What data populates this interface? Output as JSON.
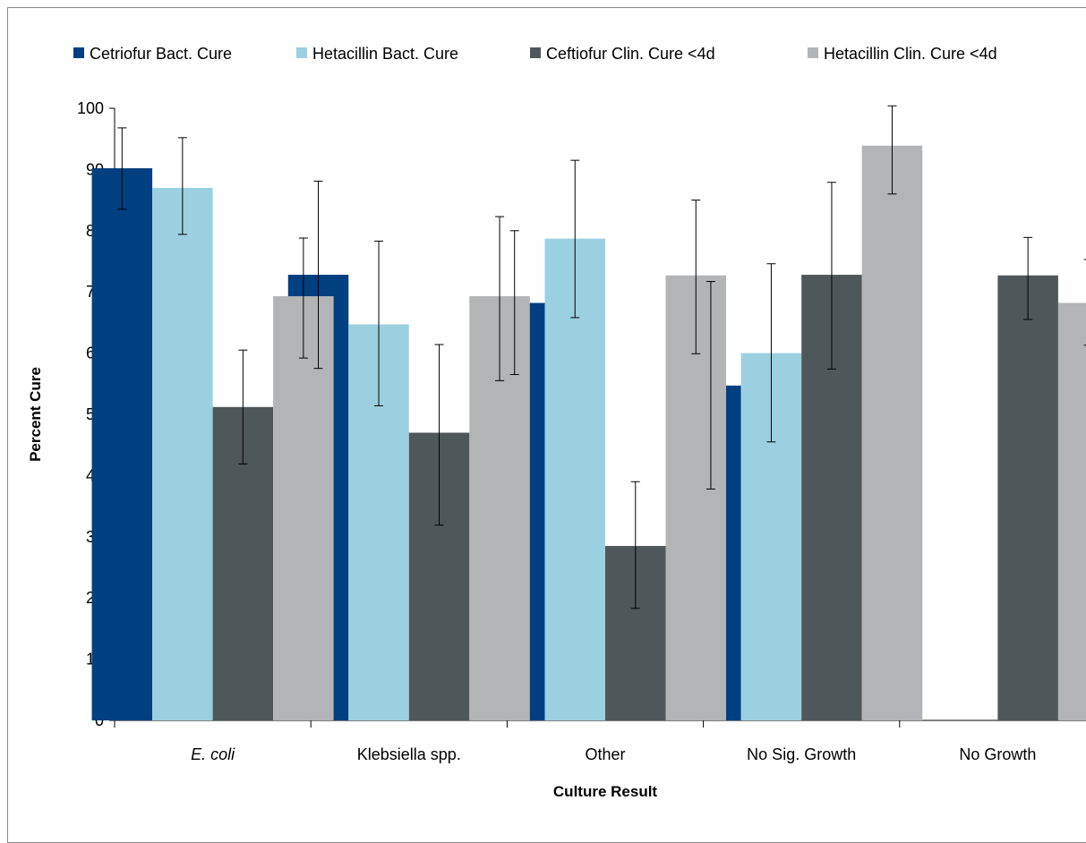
{
  "chart_data": {
    "type": "bar",
    "title": "",
    "xlabel": "Culture Result",
    "ylabel": "Percent Cure",
    "ylim": [
      0,
      100
    ],
    "yticks": [
      0,
      10,
      20,
      30,
      40,
      50,
      60,
      70,
      80,
      90,
      100
    ],
    "grid": false,
    "legend_position": "top",
    "categories": [
      "E. coli",
      "Klebsiella spp.",
      "Other",
      "No Sig. Growth",
      "No Growth"
    ],
    "category_italic": [
      true,
      false,
      false,
      false,
      false
    ],
    "series": [
      {
        "name": "Cetriofur Bact. Cure",
        "color": "#003f80",
        "values": [
          90.2,
          72.8,
          68.2,
          54.7,
          null
        ],
        "err_low": [
          83.5,
          57.5,
          56.5,
          37.8,
          null
        ],
        "err_high": [
          96.8,
          88.1,
          80.0,
          71.7,
          null
        ]
      },
      {
        "name": "Hetacillin Bact. Cure",
        "color": "#9bd0e0",
        "values": [
          87.0,
          64.7,
          78.7,
          60.0,
          null
        ],
        "err_low": [
          79.4,
          51.4,
          65.8,
          45.5,
          null
        ],
        "err_high": [
          95.2,
          78.3,
          91.5,
          74.6,
          null
        ]
      },
      {
        "name": "Ceftiofur Clin. Cure <4d",
        "color": "#50575a",
        "values": [
          51.2,
          47.0,
          28.5,
          72.8,
          72.7
        ],
        "err_low": [
          41.9,
          31.9,
          18.3,
          57.4,
          65.5
        ],
        "err_high": [
          60.5,
          61.4,
          39.0,
          87.9,
          78.9
        ]
      },
      {
        "name": "Hetacillin Clin. Cure <4d",
        "color": "#b3b4b6",
        "values": [
          69.3,
          69.3,
          72.7,
          93.9,
          68.2
        ],
        "err_low": [
          59.2,
          55.5,
          59.9,
          86.0,
          61.3
        ],
        "err_high": [
          78.8,
          82.3,
          85.0,
          100.4,
          75.3
        ]
      }
    ]
  }
}
